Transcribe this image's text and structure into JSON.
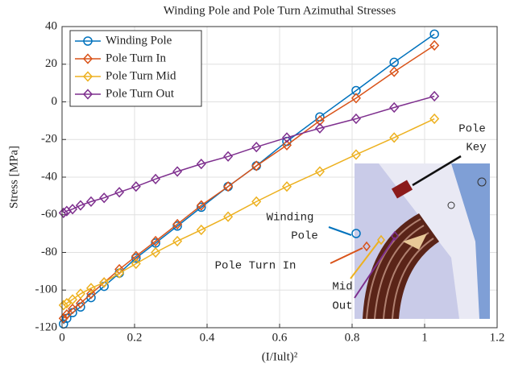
{
  "chart_data": {
    "type": "line",
    "title": "Winding Pole and Pole Turn Azimuthal Stresses",
    "x_label": "(I/Iult)²",
    "y_label": "Stress [MPa]",
    "x": [
      0.004,
      0.013,
      0.029,
      0.051,
      0.08,
      0.116,
      0.158,
      0.204,
      0.258,
      0.318,
      0.384,
      0.458,
      0.536,
      0.62,
      0.711,
      0.811,
      0.916,
      1.027
    ],
    "series": [
      {
        "name": "Winding Pole",
        "color": "#0072bd",
        "marker": "circle",
        "values": [
          -118,
          -115,
          -112,
          -109,
          -104,
          -98,
          -91,
          -83,
          -75,
          -66,
          -56,
          -45,
          -34,
          -21,
          -8,
          6,
          21,
          36
        ]
      },
      {
        "name": "Pole Turn In",
        "color": "#d95319",
        "marker": "diamond",
        "values": [
          -115,
          -113,
          -110,
          -107,
          -102,
          -96,
          -89,
          -82,
          -74,
          -65,
          -55,
          -45,
          -34,
          -23,
          -10,
          2,
          16,
          30
        ]
      },
      {
        "name": "Pole Turn Mid",
        "color": "#edb120",
        "marker": "diamond",
        "values": [
          -108,
          -107,
          -105,
          -102,
          -99,
          -96,
          -91,
          -86,
          -80,
          -74,
          -68,
          -61,
          -53,
          -45,
          -37,
          -28,
          -19,
          -9
        ]
      },
      {
        "name": "Pole Turn Out",
        "color": "#7e2f8e",
        "marker": "diamond",
        "values": [
          -59,
          -58,
          -57,
          -55,
          -53,
          -51,
          -48,
          -45,
          -41,
          -37,
          -33,
          -29,
          -24,
          -19,
          -14,
          -9,
          -3,
          3
        ]
      }
    ],
    "xlim": [
      0,
      1.2
    ],
    "xticks": [
      0,
      0.2,
      0.4,
      0.6,
      0.8,
      1,
      1.2
    ],
    "ylim": [
      -120,
      40
    ],
    "yticks": [
      -120,
      -100,
      -80,
      -60,
      -40,
      -20,
      0,
      20,
      40
    ],
    "grid": true,
    "legend": "upper-left",
    "annotations": [
      "Pole",
      "Key",
      "Winding",
      "Pole",
      "Pole Turn In",
      "Mid",
      "Out"
    ]
  }
}
